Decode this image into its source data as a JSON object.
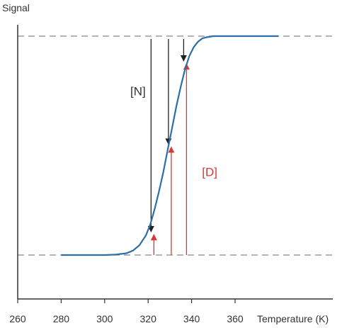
{
  "chart_data": {
    "type": "line",
    "title": "",
    "xlabel": "Temperature (K)",
    "ylabel": "Signal",
    "x_ticks": [
      "260",
      "280",
      "300",
      "320",
      "340",
      "360"
    ],
    "xlim": [
      260,
      380
    ],
    "ylim": [
      -0.25,
      1.15
    ],
    "grid": false,
    "series": [
      {
        "x": [
          280,
          290,
          300,
          305,
          310,
          313,
          316,
          319,
          321,
          323,
          325,
          327,
          329,
          331,
          333,
          335,
          337,
          339,
          341,
          343,
          345,
          347,
          350,
          355,
          360,
          370,
          380
        ],
        "y": [
          0.0,
          0.0,
          0.0,
          0.002,
          0.008,
          0.02,
          0.045,
          0.09,
          0.14,
          0.21,
          0.29,
          0.38,
          0.48,
          0.58,
          0.68,
          0.77,
          0.85,
          0.91,
          0.95,
          0.975,
          0.99,
          0.995,
          1.0,
          1.0,
          1.0,
          1.0,
          1.0
        ],
        "color": "#2E6FA7"
      }
    ],
    "reference_lines": [
      {
        "y": 0.0,
        "style": "dashed",
        "color": "#888888"
      },
      {
        "y": 1.0,
        "style": "dashed",
        "color": "#888888"
      }
    ],
    "arrows_native": [
      {
        "x": 322,
        "y_from": 0.0,
        "y_to": 0.1,
        "direction": "up"
      },
      {
        "x": 330,
        "y_from": 0.0,
        "y_to": 0.5,
        "direction": "up"
      },
      {
        "x": 337,
        "y_from": 0.0,
        "y_to": 0.88,
        "direction": "up"
      }
    ],
    "arrows_denatured": [
      {
        "x": 322,
        "y_from": 1.0,
        "y_to": 0.1,
        "direction": "down"
      },
      {
        "x": 330,
        "y_from": 1.0,
        "y_to": 0.5,
        "direction": "down"
      },
      {
        "x": 337,
        "y_from": 1.0,
        "y_to": 0.88,
        "direction": "down"
      }
    ],
    "annotations": [
      {
        "text": "[N]",
        "x": 317,
        "y": 0.75,
        "color": "#333333"
      },
      {
        "text": "[D]",
        "x": 350,
        "y": 0.38,
        "color": "#D63B33"
      }
    ],
    "colors": {
      "curve": "#2E6FA7",
      "native_arrows": "#D63B33",
      "denatured_arrows": "#222222",
      "axis": "#333333",
      "dashed": "#888888"
    }
  }
}
